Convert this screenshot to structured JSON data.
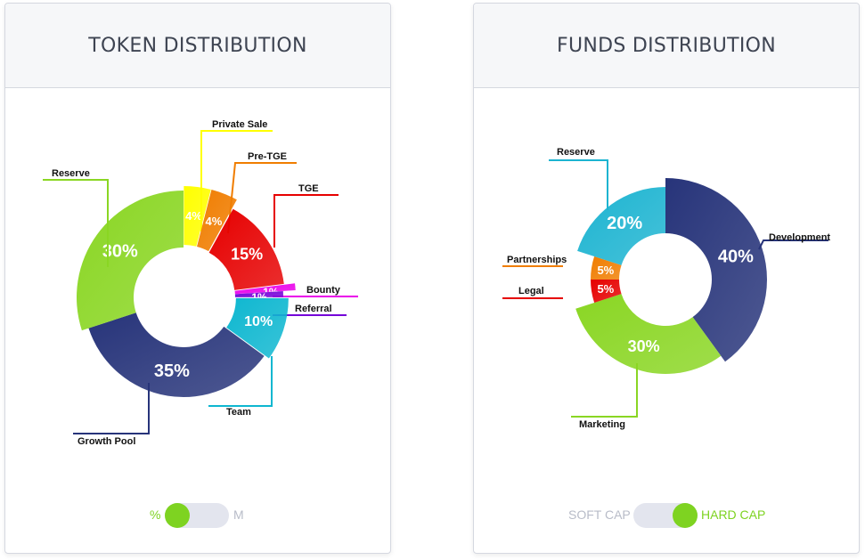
{
  "token_card": {
    "title": "TOKEN DISTRIBUTION",
    "toggle": {
      "left_label": "%",
      "right_label": "M",
      "active": "left"
    }
  },
  "funds_card": {
    "title": "FUNDS DISTRIBUTION",
    "toggle": {
      "left_label": "SOFT CAP",
      "right_label": "HARD CAP",
      "active": "right"
    }
  },
  "colors": {
    "toggle_active": "#7ed321",
    "toggle_inactive": "#b8bcc8",
    "toggle_track": "#e3e5ee"
  },
  "chart_data": [
    {
      "type": "pie",
      "subtype": "donut",
      "title": "TOKEN DISTRIBUTION",
      "slices": [
        {
          "name": "Private Sale",
          "value": 4,
          "label": "4%",
          "color": "#ffff00"
        },
        {
          "name": "Pre-TGE",
          "value": 4,
          "label": "4%",
          "color": "#f07d00"
        },
        {
          "name": "TGE",
          "value": 15,
          "label": "15%",
          "color": "#e60000"
        },
        {
          "name": "Bounty",
          "value": 1,
          "label": "1%",
          "color": "#ea00ea"
        },
        {
          "name": "Referral",
          "value": 1,
          "label": "1%",
          "color": "#7400d8"
        },
        {
          "name": "Team",
          "value": 10,
          "label": "10%",
          "color": "#0eb7d0"
        },
        {
          "name": "Growth Pool",
          "value": 35,
          "label": "35%",
          "color": "#27347a"
        },
        {
          "name": "Reserve",
          "value": 30,
          "label": "30%",
          "color": "#8ad623"
        }
      ]
    },
    {
      "type": "pie",
      "subtype": "donut",
      "title": "FUNDS DISTRIBUTION",
      "slices": [
        {
          "name": "Development",
          "value": 40,
          "label": "40%",
          "color": "#27347a"
        },
        {
          "name": "Marketing",
          "value": 30,
          "label": "30%",
          "color": "#8ad623"
        },
        {
          "name": "Legal",
          "value": 5,
          "label": "5%",
          "color": "#e60000"
        },
        {
          "name": "Partnerships",
          "value": 5,
          "label": "5%",
          "color": "#f07d00"
        },
        {
          "name": "Reserve",
          "value": 20,
          "label": "20%",
          "color": "#1db4d1"
        }
      ]
    }
  ]
}
